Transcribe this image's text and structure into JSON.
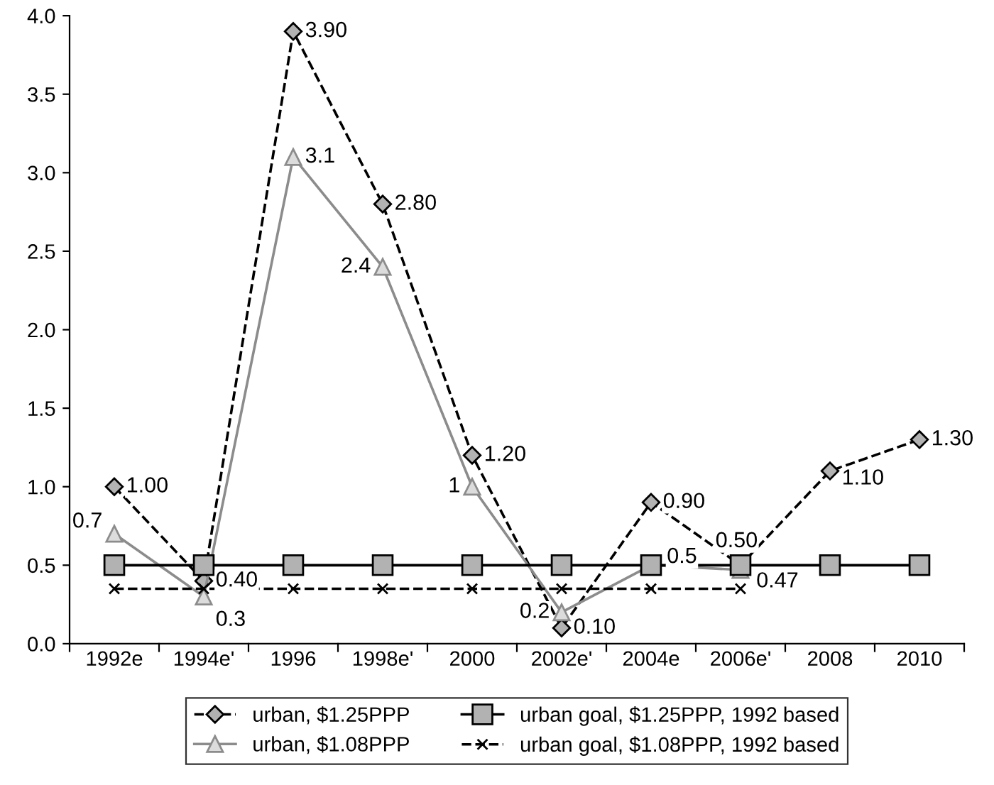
{
  "chart_data": {
    "type": "line",
    "categories": [
      "1992e",
      "1994e'",
      "1996",
      "1998e'",
      "2000",
      "2002e'",
      "2004e",
      "2006e'",
      "2008",
      "2010"
    ],
    "series": [
      {
        "name": "urban, $1.25PPP",
        "color": "#000000",
        "marker": "diamond",
        "line_style": "dashed",
        "values": [
          1.0,
          0.4,
          3.9,
          2.8,
          1.2,
          0.1,
          0.9,
          0.5,
          1.1,
          1.3
        ],
        "value_labels": [
          "1.00",
          "0.40",
          "3.90",
          "2.80",
          "1.20",
          "0.10",
          "0.90",
          "0.50",
          "1.10",
          "1.30"
        ]
      },
      {
        "name": "urban, $1.08PPP",
        "color": "#8c8c8c",
        "marker": "triangle",
        "line_style": "solid",
        "values": [
          0.7,
          0.3,
          3.1,
          2.4,
          1,
          0.2,
          0.5,
          0.47,
          null,
          null
        ],
        "value_labels": [
          "0.7",
          "0.3",
          "3.1",
          "2.4",
          "1",
          "0.2",
          "0.5",
          "0.47",
          null,
          null
        ]
      },
      {
        "name": "urban goal, $1.25PPP, 1992 based",
        "color": "#000000",
        "marker": "square",
        "line_style": "solid",
        "values": [
          0.5,
          0.5,
          0.5,
          0.5,
          0.5,
          0.5,
          0.5,
          0.5,
          0.5,
          0.5
        ]
      },
      {
        "name": "urban goal, $1.08PPP, 1992 based",
        "color": "#000000",
        "marker": "cross",
        "line_style": "dashed",
        "values": [
          0.35,
          0.35,
          0.35,
          0.35,
          0.35,
          0.35,
          0.35,
          0.35,
          null,
          null
        ]
      }
    ],
    "ylim": [
      0,
      4
    ],
    "yticks": [
      {
        "value": 0,
        "label": "0.0"
      },
      {
        "value": 0.5,
        "label": "0.5"
      },
      {
        "value": 1,
        "label": "1.0"
      },
      {
        "value": 1.5,
        "label": "1.5"
      },
      {
        "value": 2,
        "label": "2.0"
      },
      {
        "value": 2.5,
        "label": "2.5"
      },
      {
        "value": 3,
        "label": "3.0"
      },
      {
        "value": 3.5,
        "label": "3.5"
      },
      {
        "value": 4,
        "label": "4.0"
      }
    ],
    "grid": false,
    "legend": "bottom"
  }
}
